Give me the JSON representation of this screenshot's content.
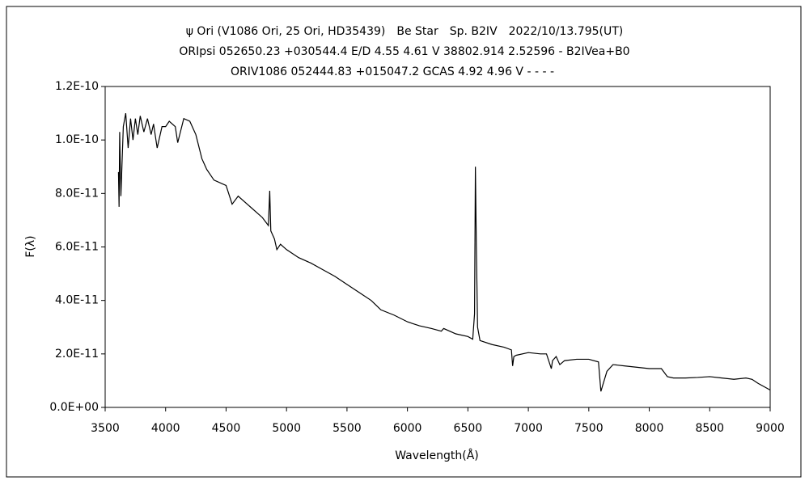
{
  "chart_data": {
    "type": "line",
    "title_lines": [
      "ψ Ori (V1086 Ori, 25 Ori, HD35439)　Be Star　Sp. B2IV　2022/10/13.795(UT)",
      "ORIpsi 052650.23 +030544.4 E/D 4.55 4.61 V 38802.914 2.52596 - B2IVea+B0",
      "ORIV1086 052444.83 +015047.2 GCAS 4.92 4.96 V - - - -"
    ],
    "xlabel": "Wavelength(Å)",
    "ylabel": "F(λ)",
    "color": "#000000",
    "xlim": [
      3500,
      9000
    ],
    "xticks": [
      3500,
      4000,
      4500,
      5000,
      5500,
      6000,
      6500,
      7000,
      7500,
      8000,
      8500,
      9000
    ],
    "ylim": [
      0,
      1.2e-10
    ],
    "yticks": [
      {
        "value": 0,
        "label": "0.0E+00"
      },
      {
        "value": 2e-11,
        "label": "2.0E-11"
      },
      {
        "value": 4e-11,
        "label": "4.0E-11"
      },
      {
        "value": 6e-11,
        "label": "6.0E-11"
      },
      {
        "value": 8e-11,
        "label": "8.0E-11"
      },
      {
        "value": 1e-10,
        "label": "1.0E-10"
      },
      {
        "value": 1.2e-10,
        "label": "1.2E-10"
      }
    ],
    "x": [
      3610,
      3615,
      3620,
      3630,
      3650,
      3670,
      3690,
      3710,
      3730,
      3750,
      3770,
      3790,
      3820,
      3850,
      3880,
      3900,
      3930,
      3970,
      4000,
      4030,
      4080,
      4100,
      4150,
      4200,
      4250,
      4300,
      4340,
      4400,
      4500,
      4550,
      4600,
      4700,
      4800,
      4850,
      4861,
      4870,
      4900,
      4920,
      4950,
      5000,
      5100,
      5200,
      5300,
      5400,
      5500,
      5600,
      5700,
      5780,
      5890,
      6000,
      6100,
      6200,
      6280,
      6300,
      6400,
      6500,
      6540,
      6555,
      6562,
      6570,
      6580,
      6600,
      6700,
      6800,
      6860,
      6870,
      6880,
      6900,
      7000,
      7100,
      7150,
      7190,
      7200,
      7230,
      7260,
      7300,
      7400,
      7500,
      7580,
      7600,
      7620,
      7650,
      7700,
      7800,
      7900,
      8000,
      8100,
      8150,
      8200,
      8300,
      8400,
      8500,
      8600,
      8700,
      8800,
      8850,
      8900,
      9000
    ],
    "values": [
      8.8e-11,
      7.5e-11,
      1.03e-10,
      7.9e-11,
      1.05e-10,
      1.1e-10,
      9.7e-11,
      1.08e-10,
      1e-10,
      1.08e-10,
      1.02e-10,
      1.09e-10,
      1.03e-10,
      1.08e-10,
      1.02e-10,
      1.06e-10,
      9.7e-11,
      1.05e-10,
      1.05e-10,
      1.07e-10,
      1.05e-10,
      9.9e-11,
      1.08e-10,
      1.07e-10,
      1.02e-10,
      9.3e-11,
      8.9e-11,
      8.5e-11,
      8.3e-11,
      7.6e-11,
      7.9e-11,
      7.5e-11,
      7.1e-11,
      6.8e-11,
      8.1e-11,
      6.6e-11,
      6.3e-11,
      5.9e-11,
      6.1e-11,
      5.9e-11,
      5.6e-11,
      5.4e-11,
      5.15e-11,
      4.9e-11,
      4.6e-11,
      4.3e-11,
      4e-11,
      3.65e-11,
      3.45e-11,
      3.2e-11,
      3.05e-11,
      2.95e-11,
      2.85e-11,
      2.95e-11,
      2.75e-11,
      2.65e-11,
      2.55e-11,
      3.5e-11,
      9e-11,
      6e-11,
      3e-11,
      2.5e-11,
      2.35e-11,
      2.25e-11,
      2.15e-11,
      1.55e-11,
      1.9e-11,
      1.95e-11,
      2.05e-11,
      2e-11,
      2e-11,
      1.45e-11,
      1.75e-11,
      1.9e-11,
      1.6e-11,
      1.75e-11,
      1.8e-11,
      1.8e-11,
      1.7e-11,
      6e-12,
      9e-12,
      1.35e-11,
      1.6e-11,
      1.55e-11,
      1.5e-11,
      1.45e-11,
      1.45e-11,
      1.15e-11,
      1.1e-11,
      1.1e-11,
      1.12e-11,
      1.15e-11,
      1.1e-11,
      1.05e-11,
      1.1e-11,
      1.05e-11,
      9e-12,
      6.5e-12
    ]
  }
}
